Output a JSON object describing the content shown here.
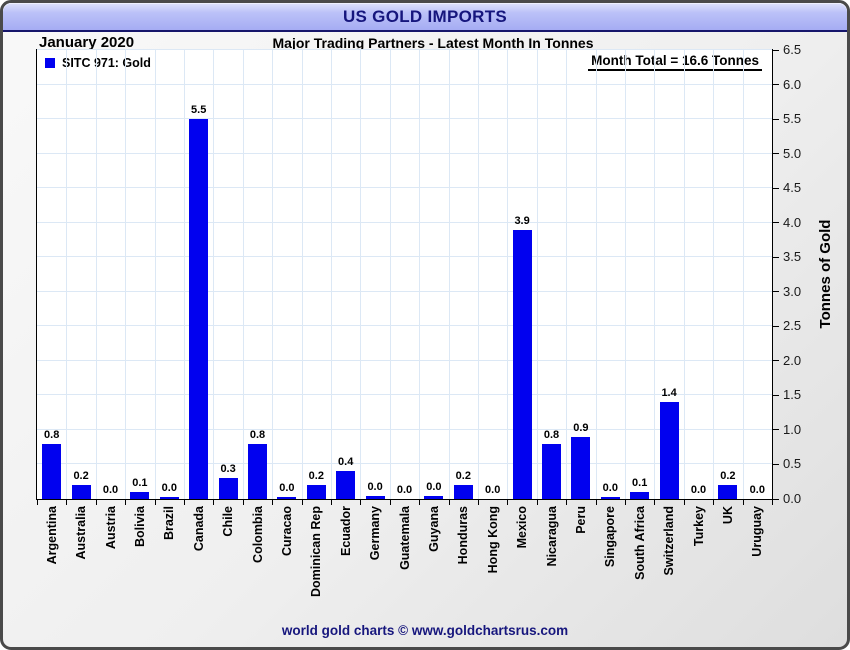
{
  "window": {
    "title": "US GOLD IMPORTS",
    "footer": "world gold charts © www.goldchartsrus.com"
  },
  "header": {
    "period": "January 2020",
    "subtitle": "Major Trading Partners - Latest Month In Tonnes"
  },
  "legend": {
    "label": "SITC 971: Gold"
  },
  "annotation": {
    "month_total": "Month Total = 16.6 Tonnes"
  },
  "colors": {
    "bar": "#0101ef",
    "title_text": "#16167d",
    "titlebar_bg": "#b0b6f5",
    "gridline": "#dce8f5",
    "plot_border": "#000000"
  },
  "chart_data": {
    "type": "bar",
    "title": "US GOLD IMPORTS",
    "subtitle": "Major Trading Partners - Latest Month In Tonnes",
    "period": "January 2020",
    "series_name": "SITC 971: Gold",
    "month_total_tonnes": 16.6,
    "categories": [
      "Argentina",
      "Australia",
      "Austria",
      "Bolivia",
      "Brazil",
      "Canada",
      "Chile",
      "Colombia",
      "Curacao",
      "Dominican Rep",
      "Ecuador",
      "Germany",
      "Guatemala",
      "Guyana",
      "Honduras",
      "Hong Kong",
      "Mexico",
      "Nicaragua",
      "Peru",
      "Singapore",
      "South Africa",
      "Switzerland",
      "Turkey",
      "UK",
      "Uruguay"
    ],
    "values": [
      0.8,
      0.2,
      0.0,
      0.1,
      0.0,
      5.5,
      0.3,
      0.8,
      0.0,
      0.2,
      0.4,
      0.0,
      0.0,
      0.0,
      0.2,
      0.0,
      3.9,
      0.8,
      0.9,
      0.0,
      0.1,
      1.4,
      0.0,
      0.2,
      0.0
    ],
    "value_labels": [
      "0.8",
      "0.2",
      "0.0",
      "0.1",
      "0.0",
      "5.5",
      "0.3",
      "0.8",
      "0.0",
      "0.2",
      "0.4",
      "0.0",
      "0.0",
      "0.0",
      "0.2",
      "0.0",
      "3.9",
      "0.8",
      "0.9",
      "0.0",
      "0.1",
      "1.4",
      "0.0",
      "0.2",
      "0.0"
    ],
    "render_values": [
      0.8,
      0.2,
      0,
      0.1,
      0.03,
      5.5,
      0.3,
      0.8,
      0.03,
      0.2,
      0.4,
      0.05,
      0,
      0.04,
      0.2,
      0,
      3.9,
      0.8,
      0.9,
      0.03,
      0.1,
      1.4,
      0,
      0.2,
      0
    ],
    "xlabel": "",
    "ylabel": "Tonnes of Gold",
    "ylim": [
      0,
      6.5
    ],
    "ytick_step": 0.5,
    "grid": true,
    "legend_position": "top-left",
    "y_axis_side": "right",
    "bar_color": "#0101ef"
  }
}
